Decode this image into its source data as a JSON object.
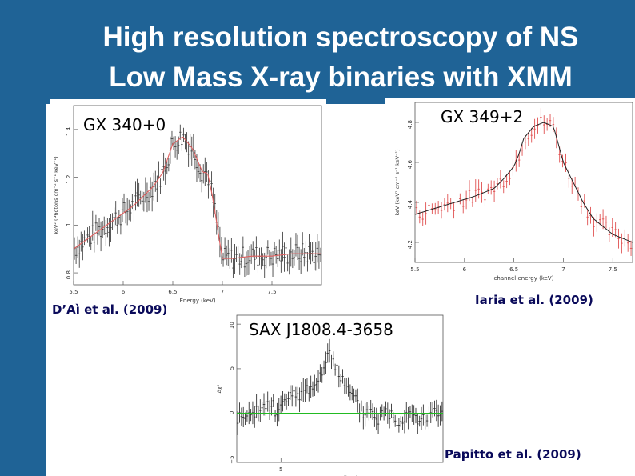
{
  "slide": {
    "title_line1": "High resolution spectroscopy of NS",
    "title_line2": "Low Mass X-ray binaries with XMM"
  },
  "panels": [
    {
      "source_name": "GX 340+0",
      "reference": "D’Aì et al. (2009)",
      "chart_data": {
        "type": "line",
        "xlabel": "Energy (keV)",
        "ylabel": "keV² (Photons cm⁻² s⁻¹ keV⁻¹)",
        "xlim": [
          5.5,
          8.0
        ],
        "ylim": [
          0.75,
          1.5
        ],
        "x_ticks": [
          "5.5",
          "6",
          "6.5",
          "7",
          "7.5"
        ],
        "y_ticks": [
          "0.8",
          "1",
          "1.2",
          "1.4"
        ],
        "series": [
          {
            "x": [
              5.5,
              5.6,
              5.7,
              5.8,
              5.9,
              6.0,
              6.1,
              6.2,
              6.3,
              6.4,
              6.5,
              6.6,
              6.7,
              6.75,
              6.8,
              6.85,
              6.9,
              6.95,
              7.0,
              7.1,
              7.3,
              7.5,
              7.7,
              8.0
            ],
            "values": [
              0.9,
              0.93,
              0.96,
              0.99,
              1.02,
              1.05,
              1.08,
              1.12,
              1.16,
              1.22,
              1.34,
              1.37,
              1.32,
              1.27,
              1.22,
              1.22,
              1.12,
              0.99,
              0.86,
              0.86,
              0.87,
              0.87,
              0.88,
              0.88
            ]
          }
        ]
      }
    },
    {
      "source_name": "GX 349+2",
      "reference": "Iaria et al. (2009)",
      "chart_data": {
        "type": "line",
        "xlabel": "channel energy (keV)",
        "ylabel": "keV (keV² cm⁻² s⁻¹ keV⁻¹)",
        "xlim": [
          5.5,
          7.7
        ],
        "ylim": [
          4.1,
          4.9
        ],
        "x_ticks": [
          "5.5",
          "6",
          "6.5",
          "7",
          "7.5"
        ],
        "y_ticks": [
          "4.2",
          "4.4",
          "4.6",
          "4.8"
        ],
        "series": [
          {
            "x": [
              5.5,
              5.7,
              5.9,
              6.1,
              6.3,
              6.4,
              6.5,
              6.55,
              6.6,
              6.7,
              6.8,
              6.9,
              7.0,
              7.1,
              7.2,
              7.3,
              7.5,
              7.7
            ],
            "values": [
              4.34,
              4.37,
              4.4,
              4.43,
              4.47,
              4.52,
              4.58,
              4.64,
              4.72,
              4.78,
              4.8,
              4.78,
              4.6,
              4.5,
              4.4,
              4.32,
              4.24,
              4.2
            ]
          }
        ]
      }
    },
    {
      "source_name": "SAX J1808.4-3658",
      "reference": "Papitto et al. (2009)",
      "chart_data": {
        "type": "scatter",
        "xlabel": "Energy (keV)",
        "ylabel": "Δχ²",
        "xlim": [
          3.5,
          10.5
        ],
        "ylim": [
          -5.5,
          11
        ],
        "y_ticks": [
          "−5",
          "0",
          "5",
          "10"
        ],
        "x_ticks": [
          "5"
        ],
        "series": [
          {
            "x": [
              4,
              4.3,
              4.6,
              4.9,
              5.2,
              5.5,
              5.8,
              6.0,
              6.2,
              6.4,
              6.5,
              6.6,
              6.7,
              6.8,
              6.9,
              7.0,
              7.1,
              7.2,
              7.4,
              7.6,
              7.8,
              8.0,
              8.3,
              8.6,
              9.0,
              9.4,
              9.8,
              10.2
            ],
            "values": [
              -0.5,
              0.5,
              1.0,
              0.3,
              1.5,
              2.0,
              2.5,
              3.0,
              3.5,
              4.5,
              5.5,
              6.0,
              6.5,
              6.0,
              5.0,
              4.5,
              3.5,
              3.0,
              2.0,
              1.0,
              0.0,
              0.5,
              -0.5,
              0.3,
              -0.8,
              0.4,
              -1.0,
              0.2
            ]
          },
          {
            "x": [
              3.5,
              10.5
            ],
            "values": [
              0,
              0
            ]
          }
        ]
      }
    }
  ]
}
